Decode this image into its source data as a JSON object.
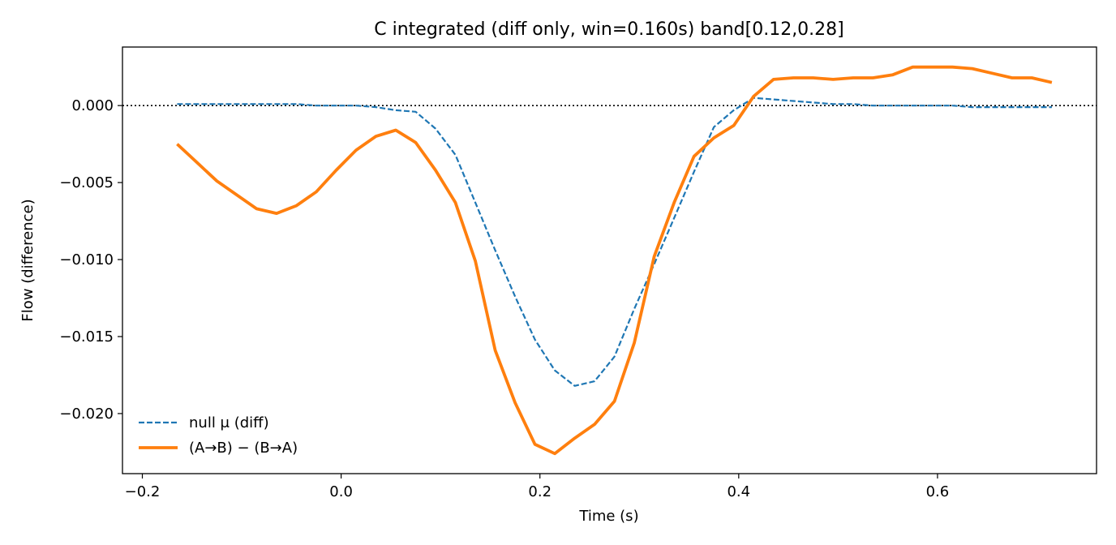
{
  "chart_data": {
    "type": "line",
    "title": "C integrated (diff only, win=0.160s)   band[0.12,0.28]",
    "xlabel": "Time (s)",
    "ylabel": "Flow (difference)",
    "xlim": [
      -0.22,
      0.76
    ],
    "ylim": [
      -0.0239,
      0.0038
    ],
    "xticks": [
      -0.2,
      0.0,
      0.2,
      0.4,
      0.6
    ],
    "xtick_labels": [
      "−0.2",
      "0.0",
      "0.2",
      "0.4",
      "0.6"
    ],
    "yticks": [
      0.0,
      -0.005,
      -0.01,
      -0.015,
      -0.02
    ],
    "ytick_labels": [
      "0.000",
      "−0.005",
      "−0.010",
      "−0.015",
      "−0.020"
    ],
    "grid": false,
    "legend_position": "lower-left",
    "reference_line": {
      "y": 0.0,
      "style": "dotted",
      "color": "#000000"
    },
    "series": [
      {
        "name": "null μ (diff)",
        "color": "#1f77b4",
        "style": "dashed",
        "x": [
          -0.165,
          -0.145,
          -0.125,
          -0.105,
          -0.085,
          -0.065,
          -0.045,
          -0.025,
          -0.005,
          0.015,
          0.035,
          0.055,
          0.075,
          0.095,
          0.115,
          0.135,
          0.155,
          0.175,
          0.195,
          0.215,
          0.235,
          0.255,
          0.275,
          0.295,
          0.315,
          0.335,
          0.355,
          0.375,
          0.395,
          0.415,
          0.435,
          0.455,
          0.475,
          0.495,
          0.515,
          0.535,
          0.555,
          0.575,
          0.595,
          0.615,
          0.635,
          0.655,
          0.675,
          0.695,
          0.715
        ],
        "y": [
          0.0001,
          0.0001,
          0.0001,
          0.0001,
          0.0001,
          0.0001,
          0.0001,
          0.0,
          0.0,
          0.0,
          -0.0001,
          -0.0003,
          -0.0004,
          -0.0015,
          -0.0032,
          -0.0063,
          -0.0094,
          -0.0124,
          -0.0152,
          -0.0172,
          -0.0182,
          -0.0179,
          -0.0163,
          -0.0132,
          -0.0103,
          -0.0073,
          -0.0043,
          -0.0014,
          -0.0003,
          0.0005,
          0.0004,
          0.0003,
          0.0002,
          0.0001,
          0.0001,
          0.0,
          0.0,
          0.0,
          0.0,
          0.0,
          -0.0001,
          -0.0001,
          -0.0001,
          -0.0001,
          -0.0001
        ]
      },
      {
        "name": "(A→B) − (B→A)",
        "color": "#ff7f0e",
        "style": "solid",
        "x": [
          -0.165,
          -0.145,
          -0.125,
          -0.105,
          -0.085,
          -0.065,
          -0.045,
          -0.025,
          -0.005,
          0.015,
          0.035,
          0.055,
          0.075,
          0.095,
          0.115,
          0.135,
          0.155,
          0.175,
          0.195,
          0.215,
          0.235,
          0.255,
          0.275,
          0.295,
          0.315,
          0.335,
          0.355,
          0.375,
          0.395,
          0.415,
          0.435,
          0.455,
          0.475,
          0.495,
          0.515,
          0.535,
          0.555,
          0.575,
          0.595,
          0.615,
          0.635,
          0.655,
          0.675,
          0.695,
          0.715
        ],
        "y": [
          -0.0025,
          -0.0037,
          -0.0049,
          -0.0058,
          -0.0067,
          -0.007,
          -0.0065,
          -0.0056,
          -0.0042,
          -0.0029,
          -0.002,
          -0.0016,
          -0.0024,
          -0.0042,
          -0.0063,
          -0.0101,
          -0.0159,
          -0.0193,
          -0.022,
          -0.0226,
          -0.0216,
          -0.0207,
          -0.0192,
          -0.0154,
          -0.0098,
          -0.0063,
          -0.0033,
          -0.0021,
          -0.0013,
          0.0006,
          0.0017,
          0.0018,
          0.0018,
          0.0017,
          0.0018,
          0.0018,
          0.002,
          0.0025,
          0.0025,
          0.0025,
          0.0024,
          0.0021,
          0.0018,
          0.0018,
          0.0015
        ]
      }
    ]
  }
}
